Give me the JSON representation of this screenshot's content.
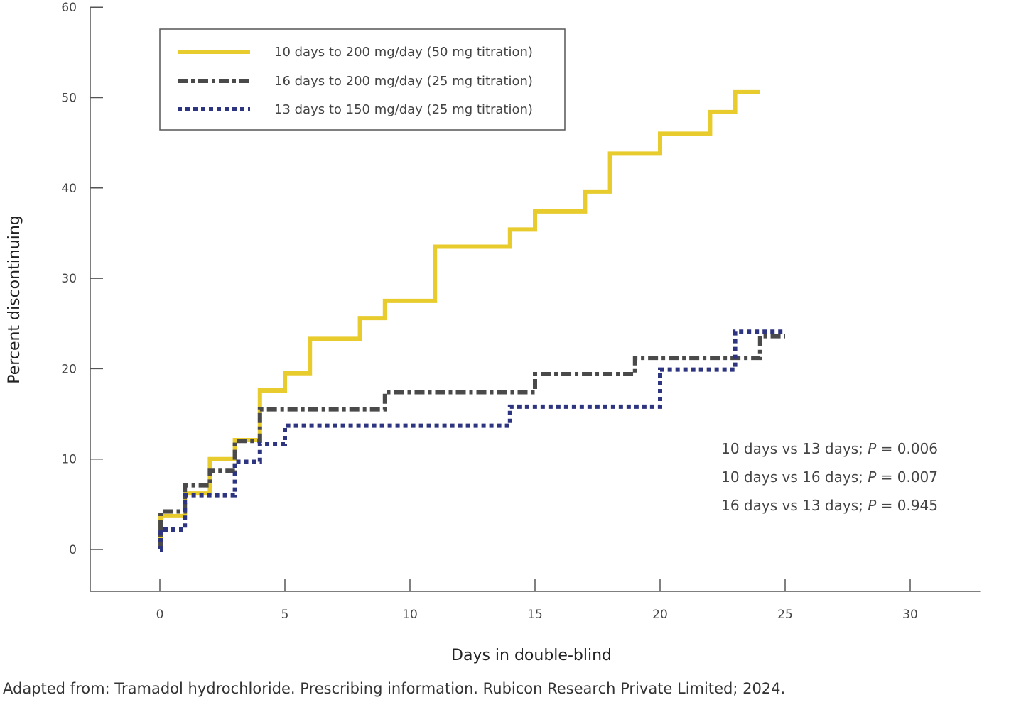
{
  "chart_data": {
    "type": "line",
    "step": true,
    "title": "",
    "xlabel": "Days in double-blind",
    "ylabel": "Percent discontinuing",
    "xlim": [
      -2.8,
      32.8
    ],
    "ylim": [
      -4.8,
      60
    ],
    "xticks": [
      0,
      5,
      10,
      15,
      20,
      25,
      30
    ],
    "yticks": [
      0,
      10,
      20,
      30,
      40,
      50,
      60
    ],
    "legend_position": "top-left",
    "series": [
      {
        "name": "10 days to 200 mg/day (50 mg titration)",
        "color": "#E8CC2E",
        "style": "solid",
        "x": [
          0,
          0.03,
          1,
          2,
          3,
          4,
          5,
          6,
          8,
          9,
          11,
          14,
          15,
          17,
          18,
          20,
          22,
          23,
          24
        ],
        "y": [
          0,
          3.7,
          6.2,
          10.0,
          12.1,
          17.6,
          19.5,
          23.3,
          25.6,
          27.5,
          33.5,
          35.4,
          37.4,
          39.6,
          43.8,
          46.0,
          48.4,
          50.6,
          50.6
        ]
      },
      {
        "name": "16 days to 200 mg/day (25 mg titration)",
        "color": "#4A4A4A",
        "style": "dashdot",
        "x": [
          0,
          0.03,
          1,
          2,
          3,
          4,
          9,
          15,
          19,
          24,
          25
        ],
        "y": [
          0,
          4.2,
          7.1,
          8.7,
          12.0,
          15.5,
          17.4,
          19.4,
          21.2,
          23.6,
          23.6
        ]
      },
      {
        "name": "13 days to 150 mg/day (25 mg titration)",
        "color": "#2E3580",
        "style": "dotted",
        "x": [
          0,
          0.03,
          1,
          3,
          4,
          5,
          14,
          20,
          23,
          25
        ],
        "y": [
          0,
          2.2,
          6.0,
          9.7,
          11.7,
          13.7,
          15.8,
          19.9,
          24.1,
          24.1
        ]
      }
    ],
    "annotations": [
      {
        "prefix": "10 days vs 13 days; ",
        "stat": "P",
        "value": " = 0.006"
      },
      {
        "prefix": "10 days vs 16 days; ",
        "stat": "P",
        "value": " = 0.007"
      },
      {
        "prefix": "16 days vs 13 days; ",
        "stat": "P",
        "value": " = 0.945"
      }
    ]
  },
  "source_note": "Adapted from: Tramadol hydrochloride. Prescribing information. Rubicon Research Private Limited; 2024."
}
